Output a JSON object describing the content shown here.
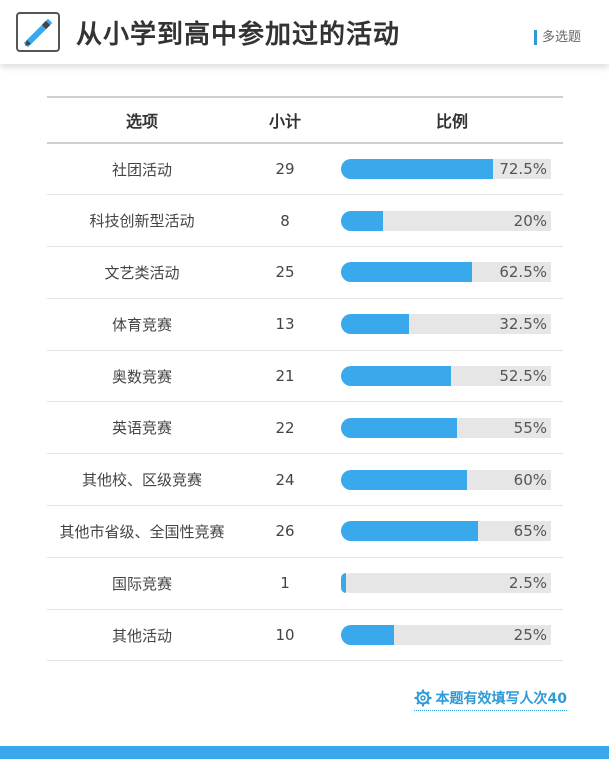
{
  "header": {
    "title": "从小学到高中参加过的活动",
    "question_type": "多选题",
    "icon": "edit-pencil-icon"
  },
  "table": {
    "columns": [
      "选项",
      "小计",
      "比例"
    ],
    "rows": [
      {
        "option": "社团活动",
        "count": "29",
        "percent_label": "72.5%",
        "percent": 72.5
      },
      {
        "option": "科技创新型活动",
        "count": "8",
        "percent_label": "20%",
        "percent": 20
      },
      {
        "option": "文艺类活动",
        "count": "25",
        "percent_label": "62.5%",
        "percent": 62.5
      },
      {
        "option": "体育竞赛",
        "count": "13",
        "percent_label": "32.5%",
        "percent": 32.5
      },
      {
        "option": "奥数竞赛",
        "count": "21",
        "percent_label": "52.5%",
        "percent": 52.5
      },
      {
        "option": "英语竞赛",
        "count": "22",
        "percent_label": "55%",
        "percent": 55
      },
      {
        "option": "其他校、区级竞赛",
        "count": "24",
        "percent_label": "60%",
        "percent": 60
      },
      {
        "option": "其他市省级、全国性竞赛",
        "count": "26",
        "percent_label": "65%",
        "percent": 65
      },
      {
        "option": "国际竞赛",
        "count": "1",
        "percent_label": "2.5%",
        "percent": 2.5
      },
      {
        "option": "其他活动",
        "count": "10",
        "percent_label": "25%",
        "percent": 25
      }
    ]
  },
  "footer": {
    "note": "本题有效填写人次40",
    "icon": "gear-icon"
  },
  "colors": {
    "accent": "#3aa9ec",
    "bar_track": "#e6e6e6",
    "link": "#2e9bd6"
  }
}
